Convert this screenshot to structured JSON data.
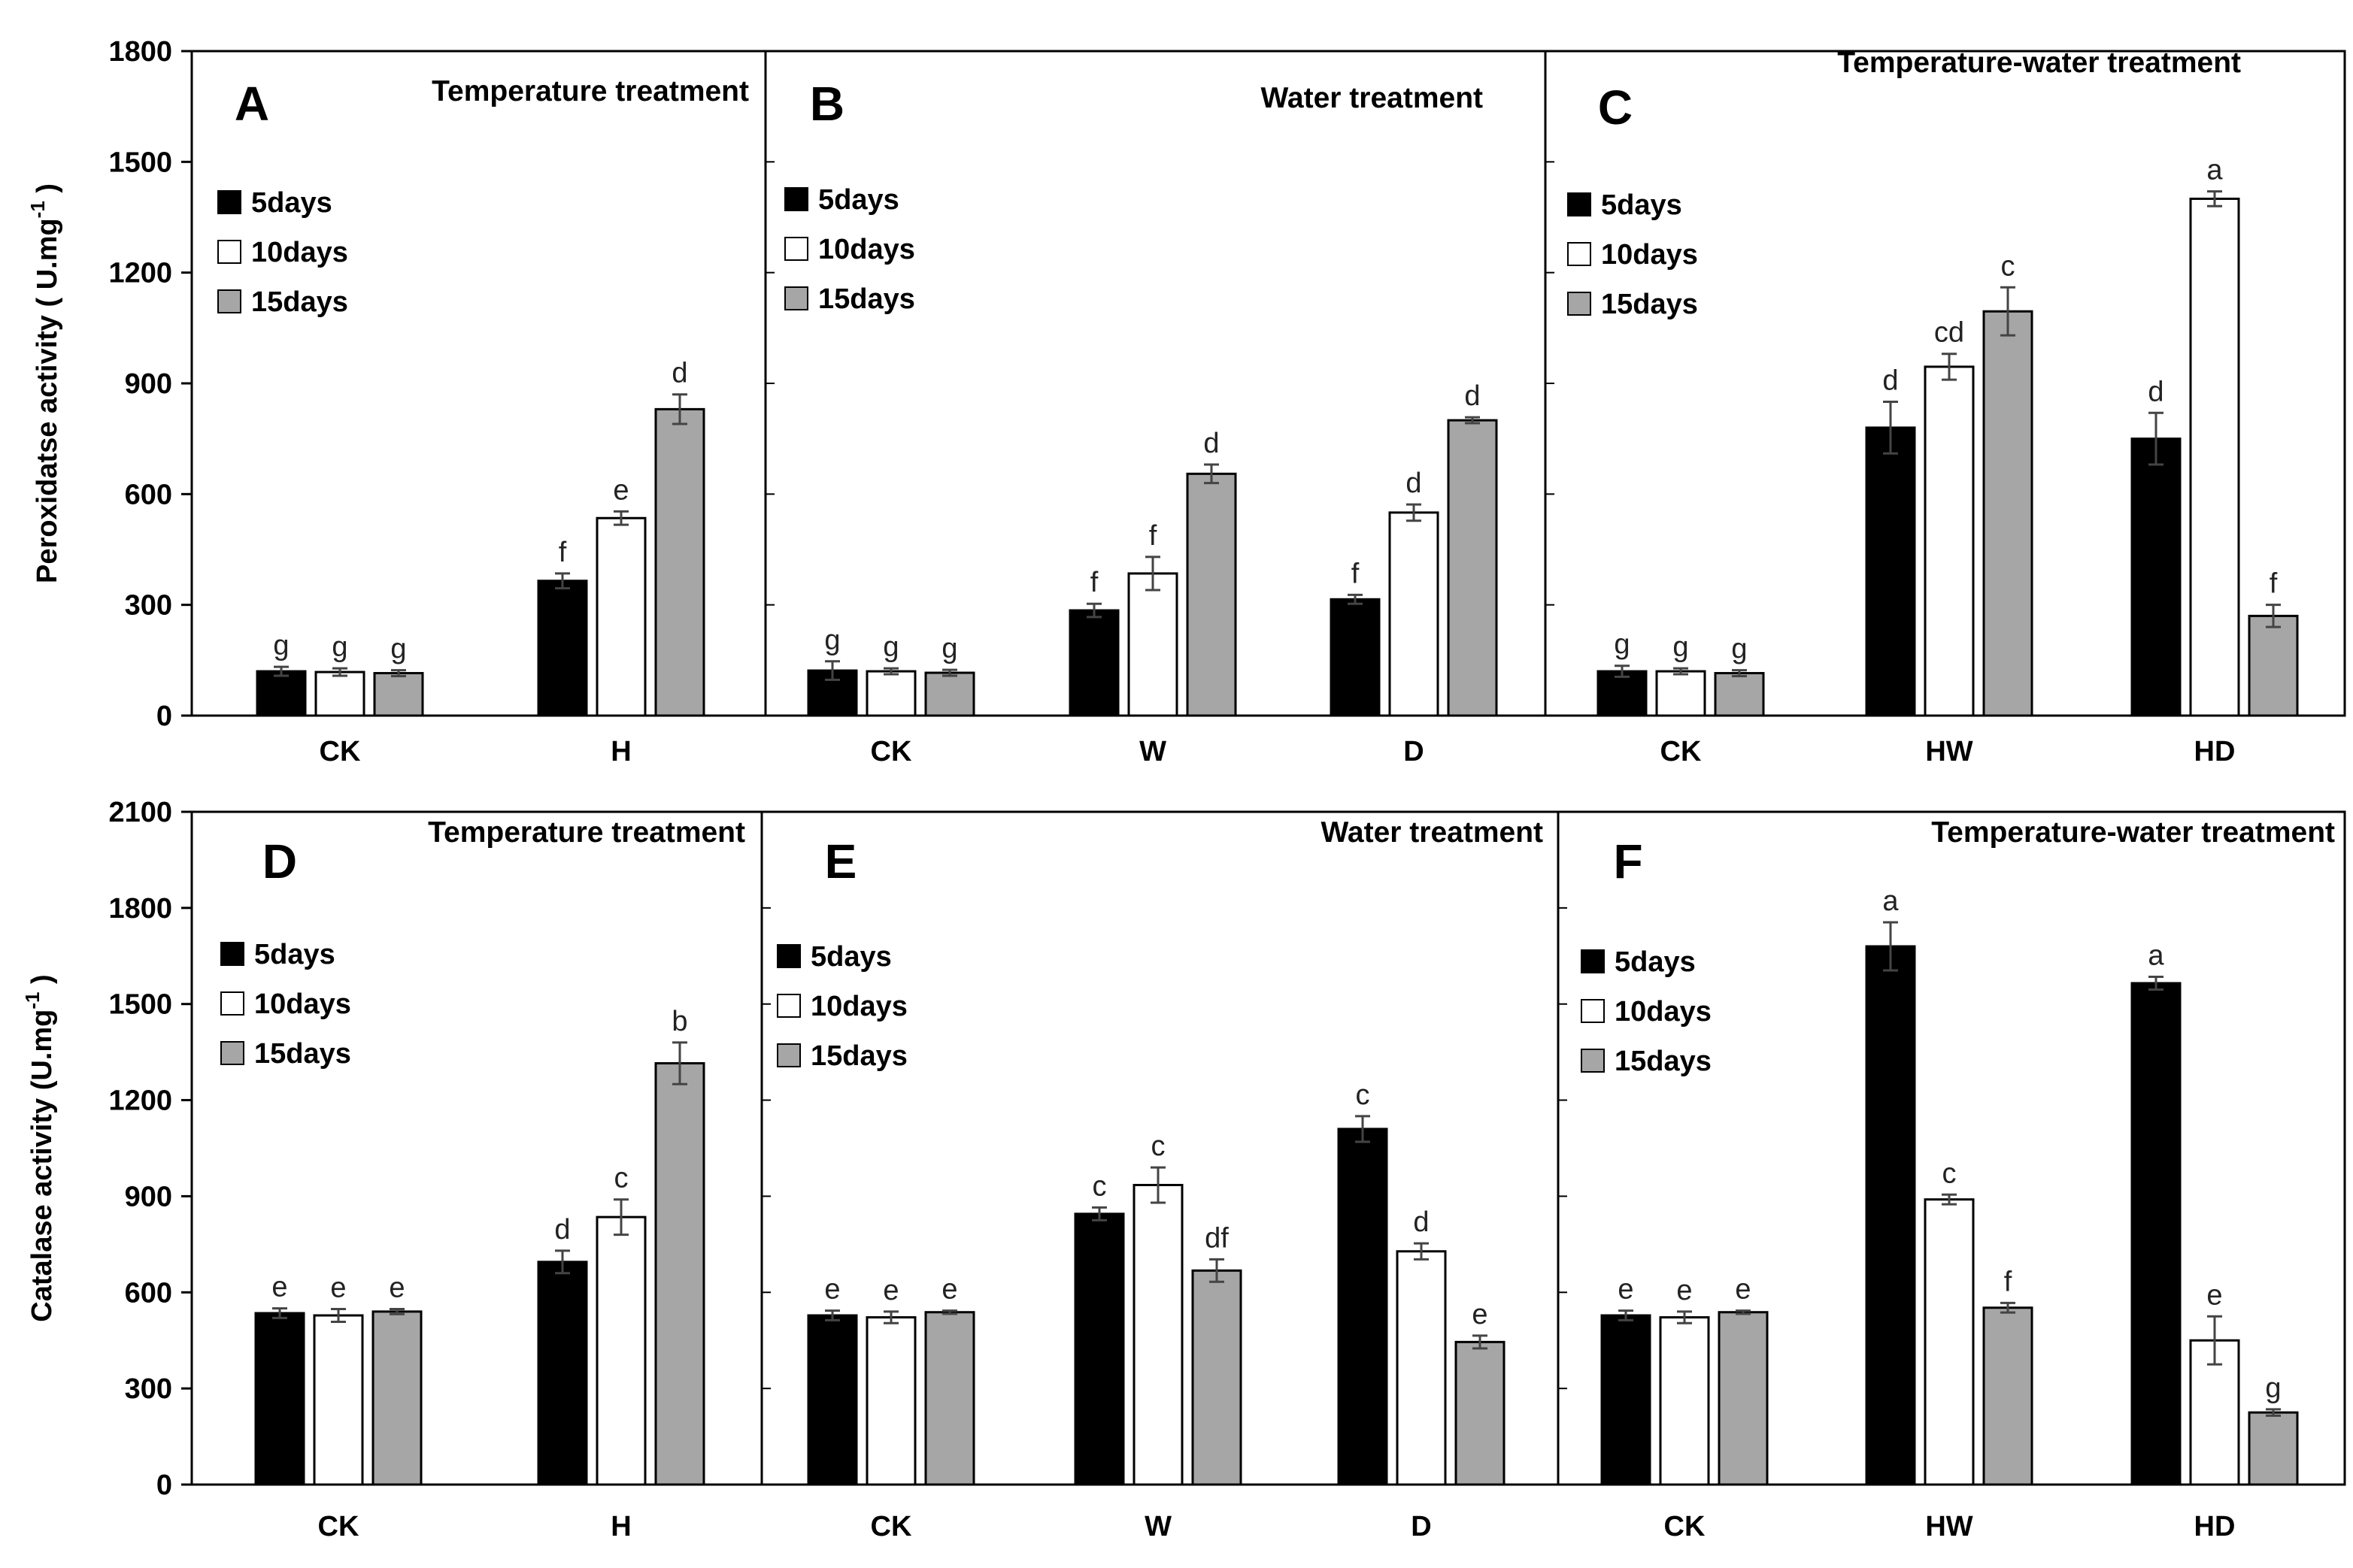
{
  "chart_data": [
    {
      "id": "peroxidase",
      "type": "bar",
      "ylabel": "Peroxidatse activity ( U.mg",
      "ylabel_sup": "-1",
      "ylabel_tail": ")",
      "ylim": [
        0,
        1800
      ],
      "yticks": [
        "0",
        "300",
        "600",
        "900",
        "1200",
        "1500",
        "1800"
      ],
      "series_names": [
        "5days",
        "10days",
        "15days"
      ],
      "series_colors": [
        "#000000",
        "#ffffff",
        "#a6a6a6"
      ],
      "panels": [
        {
          "letter": "A",
          "title": "Temperature treatment",
          "legend": "top-left",
          "groups": [
            {
              "category": "CK",
              "values": [
                120,
                118,
                115
              ],
              "errors": [
                12,
                10,
                8
              ],
              "sig": [
                "g",
                "g",
                "g"
              ]
            },
            {
              "category": "H",
              "values": [
                365,
                535,
                830
              ],
              "errors": [
                20,
                18,
                40
              ],
              "sig": [
                "f",
                "e",
                "d"
              ]
            }
          ]
        },
        {
          "letter": "B",
          "title": "Water treatment",
          "legend": "top-left",
          "groups": [
            {
              "category": "CK",
              "values": [
                122,
                120,
                116
              ],
              "errors": [
                25,
                8,
                8
              ],
              "sig": [
                "g",
                "g",
                "g"
              ]
            },
            {
              "category": "W",
              "values": [
                285,
                385,
                655
              ],
              "errors": [
                18,
                45,
                25
              ],
              "sig": [
                "f",
                "f",
                "d"
              ]
            },
            {
              "category": "D",
              "values": [
                315,
                550,
                800
              ],
              "errors": [
                12,
                22,
                8
              ],
              "sig": [
                "f",
                "d",
                "d"
              ]
            }
          ]
        },
        {
          "letter": "C",
          "title": "Temperature-water treatment",
          "legend": "top-left",
          "groups": [
            {
              "category": "CK",
              "values": [
                120,
                120,
                115
              ],
              "errors": [
                15,
                8,
                8
              ],
              "sig": [
                "g",
                "g",
                "g"
              ]
            },
            {
              "category": "HW",
              "values": [
                780,
                945,
                1095
              ],
              "errors": [
                70,
                35,
                65
              ],
              "sig": [
                "d",
                "cd",
                "c"
              ]
            },
            {
              "category": "HD",
              "values": [
                750,
                1400,
                270
              ],
              "errors": [
                70,
                20,
                30
              ],
              "sig": [
                "d",
                "a",
                "f"
              ]
            }
          ]
        }
      ]
    },
    {
      "id": "catalase",
      "type": "bar",
      "ylabel": "Catalase activity (U.mg",
      "ylabel_sup": "-1",
      "ylabel_tail": ")",
      "ylim": [
        0,
        2100
      ],
      "yticks": [
        "0",
        "300",
        "600",
        "900",
        "1200",
        "1500",
        "1800",
        "2100"
      ],
      "series_names": [
        "5days",
        "10days",
        "15days"
      ],
      "series_colors": [
        "#000000",
        "#ffffff",
        "#a6a6a6"
      ],
      "panels": [
        {
          "letter": "D",
          "title": "Temperature treatment",
          "legend": "top-left",
          "groups": [
            {
              "category": "CK",
              "values": [
                535,
                528,
                540
              ],
              "errors": [
                15,
                20,
                8
              ],
              "sig": [
                "e",
                "e",
                "e"
              ]
            },
            {
              "category": "H",
              "values": [
                695,
                835,
                1315
              ],
              "errors": [
                35,
                55,
                65
              ],
              "sig": [
                "d",
                "c",
                "b"
              ]
            }
          ]
        },
        {
          "letter": "E",
          "title": "Water treatment",
          "legend": "top-left",
          "groups": [
            {
              "category": "CK",
              "values": [
                528,
                522,
                538
              ],
              "errors": [
                15,
                18,
                5
              ],
              "sig": [
                "e",
                "e",
                "e"
              ]
            },
            {
              "category": "W",
              "values": [
                845,
                935,
                668
              ],
              "errors": [
                20,
                55,
                35
              ],
              "sig": [
                "c",
                "c",
                "df"
              ]
            },
            {
              "category": "D",
              "values": [
                1110,
                728,
                445
              ],
              "errors": [
                40,
                25,
                20
              ],
              "sig": [
                "c",
                "d",
                "e"
              ]
            }
          ]
        },
        {
          "letter": "F",
          "title": "Temperature-water treatment",
          "legend": "top-left",
          "groups": [
            {
              "category": "CK",
              "values": [
                528,
                522,
                538
              ],
              "errors": [
                15,
                18,
                5
              ],
              "sig": [
                "e",
                "e",
                "e"
              ]
            },
            {
              "category": "HW",
              "values": [
                1680,
                890,
                552
              ],
              "errors": [
                75,
                15,
                15
              ],
              "sig": [
                "a",
                "c",
                "f"
              ]
            },
            {
              "category": "HD",
              "values": [
                1565,
                450,
                225
              ],
              "errors": [
                20,
                75,
                10
              ],
              "sig": [
                "a",
                "e",
                "g"
              ]
            }
          ]
        }
      ]
    }
  ]
}
